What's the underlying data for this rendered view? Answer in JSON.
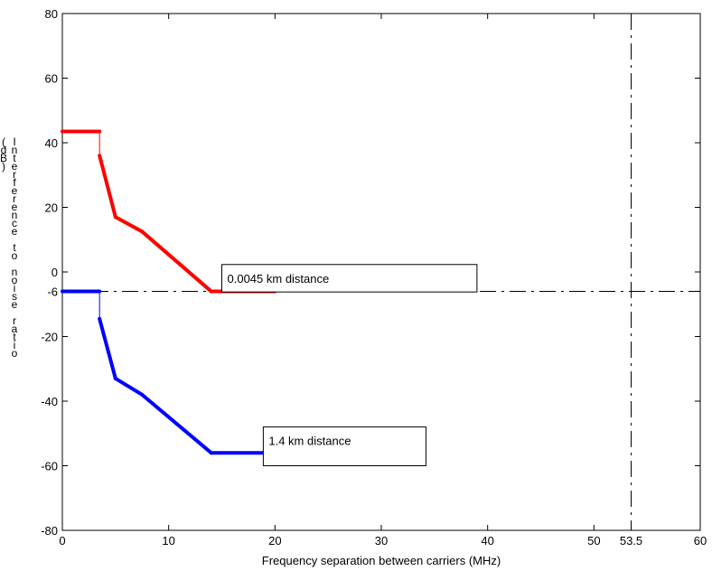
{
  "chart_data": {
    "type": "line",
    "xlabel": "Frequency separation between carriers (MHz)",
    "ylabel": "Interference to noise ratio (dB)",
    "xlim": [
      0,
      60
    ],
    "ylim": [
      -80,
      80
    ],
    "x_ticks": [
      0,
      10,
      20,
      30,
      40,
      50,
      53.5,
      60
    ],
    "y_ticks": [
      -80,
      -60,
      -40,
      -20,
      -6,
      0,
      20,
      40,
      60,
      80
    ],
    "grid": false,
    "series": [
      {
        "name": "0.0045 km distance",
        "color": "#ff0000",
        "points": [
          [
            0,
            43.5
          ],
          [
            3.5,
            43.5
          ],
          [
            3.5,
            36
          ],
          [
            5,
            17
          ],
          [
            7.5,
            12.5
          ],
          [
            14,
            -6
          ],
          [
            20,
            -6
          ]
        ]
      },
      {
        "name": "1.4 km distance",
        "color": "#0000ff",
        "points": [
          [
            0,
            -6
          ],
          [
            3.5,
            -6
          ],
          [
            3.5,
            -14.5
          ],
          [
            5,
            -33
          ],
          [
            7.5,
            -38
          ],
          [
            14,
            -56
          ],
          [
            20,
            -56
          ]
        ]
      }
    ],
    "reference_lines": [
      {
        "orientation": "horizontal",
        "value": -6,
        "style": "dash-dot",
        "color": "#000000"
      },
      {
        "orientation": "vertical",
        "value": 53.5,
        "style": "dash-dot",
        "color": "#000000"
      }
    ],
    "annotations": [
      {
        "text": "0.0045 km distance",
        "series": 0
      },
      {
        "text": "1.4 km distance",
        "series": 1
      }
    ]
  }
}
